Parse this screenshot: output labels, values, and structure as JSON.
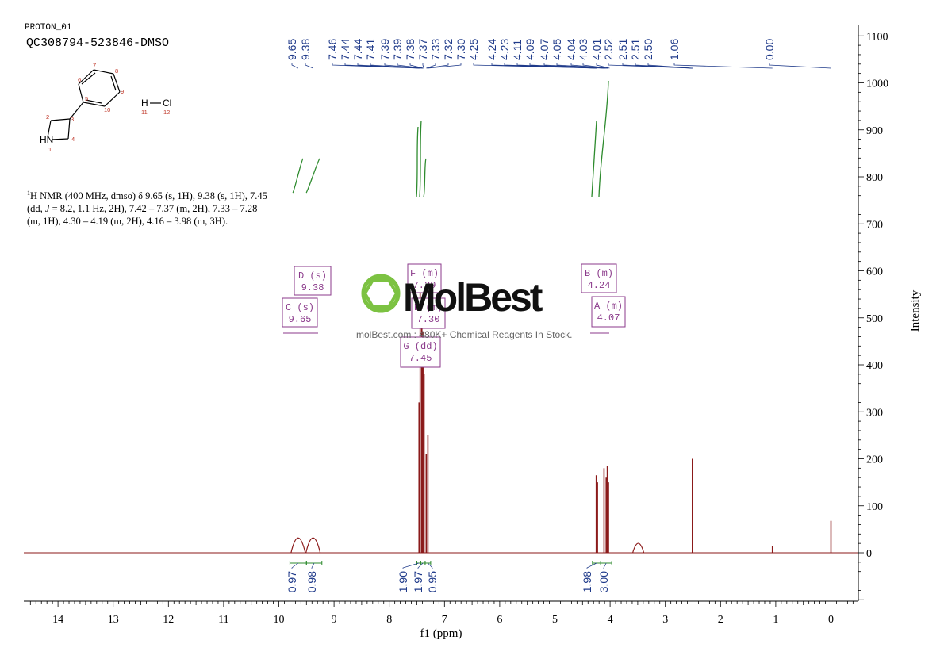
{
  "header": {
    "experiment": "PROTON_01",
    "sample": "QC308794-523846-DMSO"
  },
  "structure": {
    "nh_label": "HN",
    "hcl_h": "H",
    "hcl_cl": "Cl",
    "atom_numbers": [
      "1",
      "2",
      "3",
      "4",
      "5",
      "6",
      "7",
      "8",
      "9",
      "10",
      "11",
      "12"
    ]
  },
  "nmr_text": {
    "sup": "1",
    "nucleus": "H NMR (400 MHz, dmso) δ 9.65 (s, 1H), 9.38 (s, 1H), 7.45",
    "line2_pre": "(dd, ",
    "line2_j": "J",
    "line2_post": " = 8.2, 1.1 Hz, 2H), 7.42 – 7.37 (m, 2H), 7.33 – 7.28",
    "line3": "(m, 1H), 4.30 – 4.19 (m, 2H), 4.16 – 3.98 (m, 3H)."
  },
  "watermark": {
    "brand": "MolBest",
    "tagline": "molBest.com : 480K+ Chemical Reagents In Stock."
  },
  "colors": {
    "spectrum": "#8b1a1a",
    "peak_labels": "#1f3a8a",
    "integral": "#2e8b2e",
    "multiplet_box": "#8b3a8b",
    "brand_green": "#7cc242",
    "axis": "#000000"
  },
  "chart_data": {
    "type": "line",
    "xlabel": "f1 (ppm)",
    "ylabel": "Intensity",
    "xlim": [
      14.6,
      -0.5
    ],
    "ylim": [
      -110,
      1120
    ],
    "x_ticks": [
      14,
      13,
      12,
      11,
      10,
      9,
      8,
      7,
      6,
      5,
      4,
      3,
      2,
      1,
      0
    ],
    "y_ticks": [
      1100,
      1000,
      900,
      800,
      700,
      600,
      500,
      400,
      300,
      200,
      100,
      0
    ],
    "peaks": [
      {
        "ppm": 9.65,
        "height": 43
      },
      {
        "ppm": 9.38,
        "height": 43
      },
      {
        "ppm": 7.46,
        "height": 320
      },
      {
        "ppm": 7.44,
        "height": 580
      },
      {
        "ppm": 7.41,
        "height": 520
      },
      {
        "ppm": 7.39,
        "height": 470
      },
      {
        "ppm": 7.37,
        "height": 380
      },
      {
        "ppm": 7.33,
        "height": 210
      },
      {
        "ppm": 7.3,
        "height": 250
      },
      {
        "ppm": 4.25,
        "height": 165
      },
      {
        "ppm": 4.23,
        "height": 150
      },
      {
        "ppm": 4.11,
        "height": 180
      },
      {
        "ppm": 4.07,
        "height": 160
      },
      {
        "ppm": 4.05,
        "height": 185
      },
      {
        "ppm": 4.03,
        "height": 150
      },
      {
        "ppm": 3.49,
        "height": 20
      },
      {
        "ppm": 2.51,
        "height": 200
      },
      {
        "ppm": 1.06,
        "height": 15
      },
      {
        "ppm": 0.0,
        "height": 68
      }
    ],
    "peak_labels": [
      "9.65",
      "9.38",
      "7.46",
      "7.44",
      "7.44",
      "7.41",
      "7.39",
      "7.39",
      "7.38",
      "7.37",
      "7.33",
      "7.32",
      "7.30",
      "4.25",
      "4.24",
      "4.23",
      "4.11",
      "4.09",
      "4.07",
      "4.05",
      "4.04",
      "4.03",
      "4.01",
      "2.52",
      "2.51",
      "2.51",
      "2.50",
      "1.06",
      "0.00"
    ],
    "multiplets": [
      {
        "id": "C (s)",
        "ppm": "9.65"
      },
      {
        "id": "D (s)",
        "ppm": "9.38"
      },
      {
        "id": "F (m)",
        "ppm": "7.39"
      },
      {
        "id": "E (m)",
        "ppm": "7.30"
      },
      {
        "id": "G (dd)",
        "ppm": "7.45"
      },
      {
        "id": "B (m)",
        "ppm": "4.24"
      },
      {
        "id": "A (m)",
        "ppm": "4.07"
      }
    ],
    "integrals": [
      {
        "from": 9.8,
        "to": 9.5,
        "value": "0.97"
      },
      {
        "from": 9.5,
        "to": 9.22,
        "value": "0.98"
      },
      {
        "from": 7.5,
        "to": 7.43,
        "value": "1.90"
      },
      {
        "from": 7.43,
        "to": 7.35,
        "value": "1.97"
      },
      {
        "from": 7.35,
        "to": 7.25,
        "value": "0.95"
      },
      {
        "from": 4.32,
        "to": 4.17,
        "value": "1.98"
      },
      {
        "from": 4.17,
        "to": 3.97,
        "value": "3.00"
      }
    ]
  }
}
